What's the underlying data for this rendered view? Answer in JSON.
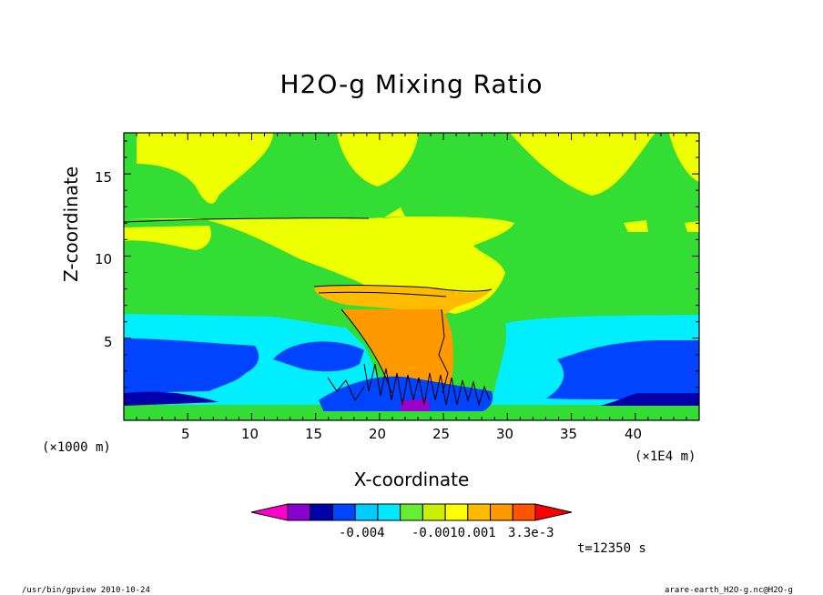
{
  "chart_data": {
    "type": "heatmap",
    "title": "H2O-g Mixing Ratio",
    "xlabel": "X-coordinate",
    "ylabel": "Z-coordinate",
    "x_scale_note_left": "(×1000 m)",
    "x_scale_note_right": "(×1E4 m)",
    "x_ticks": [
      "5",
      "10",
      "15",
      "20",
      "25",
      "30",
      "35",
      "40"
    ],
    "y_ticks": [
      "15",
      "10",
      "5"
    ],
    "xlim": [
      0,
      45
    ],
    "ylim": [
      0,
      17.5
    ],
    "colorbar": {
      "labels": [
        "-0.004",
        "-0.0010.001",
        "3.3e-3"
      ],
      "colors": [
        "#ff00cc",
        "#8800cc",
        "#0000aa",
        "#0044ff",
        "#00ccff",
        "#00e8ff",
        "#66ee33",
        "#ccee00",
        "#ffff00",
        "#ffbb00",
        "#ff9900",
        "#ff5500",
        "#ff0000"
      ]
    },
    "time_label": "t=12350 s",
    "field_colors": {
      "green": "#33dd33",
      "yellow": "#eeff00",
      "orange_light": "#ffbb00",
      "orange": "#ff9900",
      "cyan": "#00eeff",
      "blue": "#0044ff",
      "navy": "#0000aa",
      "purple": "#9900cc"
    }
  },
  "footer": {
    "left": "/usr/bin/gpview  2010-10-24",
    "right": "arare-earth_H2O-g.nc@H2O-g"
  }
}
